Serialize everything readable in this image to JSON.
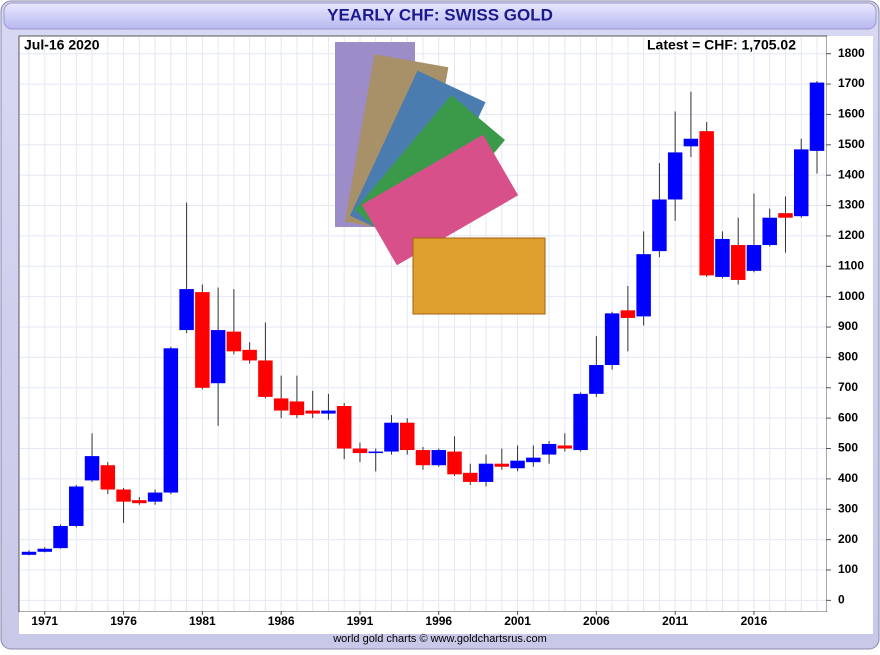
{
  "chart_data": {
    "type": "candlestick",
    "title": "YEARLY CHF: SWISS GOLD",
    "date_label": "Jul-16  2020",
    "latest_label": "Latest = CHF: 1,705.02",
    "source": "world gold charts © www.goldchartsrus.com",
    "categories": [
      null,
      "1971",
      null,
      null,
      null,
      null,
      "1976",
      null,
      null,
      null,
      null,
      "1981",
      null,
      null,
      null,
      null,
      "1986",
      null,
      null,
      null,
      null,
      "1991",
      null,
      null,
      null,
      null,
      "1996",
      null,
      null,
      null,
      null,
      "2001",
      null,
      null,
      null,
      null,
      "2006",
      null,
      null,
      null,
      null,
      "2011",
      null,
      null,
      null,
      null,
      "2016",
      null,
      null,
      null,
      null
    ],
    "open": [
      150,
      160,
      172,
      245,
      395,
      445,
      365,
      330,
      325,
      355,
      890,
      1015,
      715,
      885,
      825,
      790,
      665,
      655,
      625,
      615,
      640,
      500,
      485,
      490,
      585,
      495,
      445,
      490,
      420,
      390,
      450,
      435,
      455,
      480,
      510,
      495,
      680,
      775,
      955,
      935,
      1150,
      1320,
      1495,
      1545,
      1065,
      1170,
      1085,
      1170,
      1275,
      1265,
      1480
    ],
    "high": [
      165,
      175,
      250,
      380,
      550,
      455,
      370,
      340,
      365,
      835,
      1310,
      1040,
      1030,
      1025,
      850,
      915,
      740,
      740,
      690,
      680,
      650,
      520,
      500,
      610,
      600,
      505,
      500,
      540,
      450,
      480,
      500,
      510,
      510,
      525,
      550,
      685,
      870,
      950,
      1035,
      1215,
      1440,
      1610,
      1675,
      1575,
      1215,
      1260,
      1340,
      1290,
      1330,
      1520,
      1710
    ],
    "low": [
      148,
      158,
      170,
      240,
      390,
      350,
      255,
      315,
      315,
      350,
      880,
      695,
      575,
      810,
      780,
      665,
      600,
      600,
      600,
      595,
      465,
      455,
      425,
      480,
      480,
      430,
      440,
      410,
      380,
      375,
      430,
      425,
      440,
      450,
      490,
      490,
      670,
      760,
      820,
      905,
      1130,
      1250,
      1460,
      1065,
      1060,
      1040,
      1080,
      1165,
      1145,
      1260,
      1405
    ],
    "close": [
      160,
      170,
      245,
      375,
      475,
      365,
      325,
      320,
      355,
      830,
      1025,
      700,
      890,
      820,
      790,
      670,
      625,
      610,
      615,
      625,
      500,
      485,
      490,
      585,
      495,
      445,
      495,
      415,
      390,
      450,
      440,
      460,
      470,
      515,
      500,
      680,
      775,
      945,
      930,
      1140,
      1320,
      1475,
      1520,
      1070,
      1190,
      1055,
      1170,
      1260,
      1260,
      1485,
      1705
    ],
    "up_color": "#0000ff",
    "down_color": "#ff0000",
    "ylim": [
      -35,
      1855
    ],
    "yticks": [
      0,
      100,
      200,
      300,
      400,
      500,
      600,
      700,
      800,
      900,
      1000,
      1100,
      1200,
      1300,
      1400,
      1500,
      1600,
      1700,
      1800
    ],
    "grid": true
  }
}
